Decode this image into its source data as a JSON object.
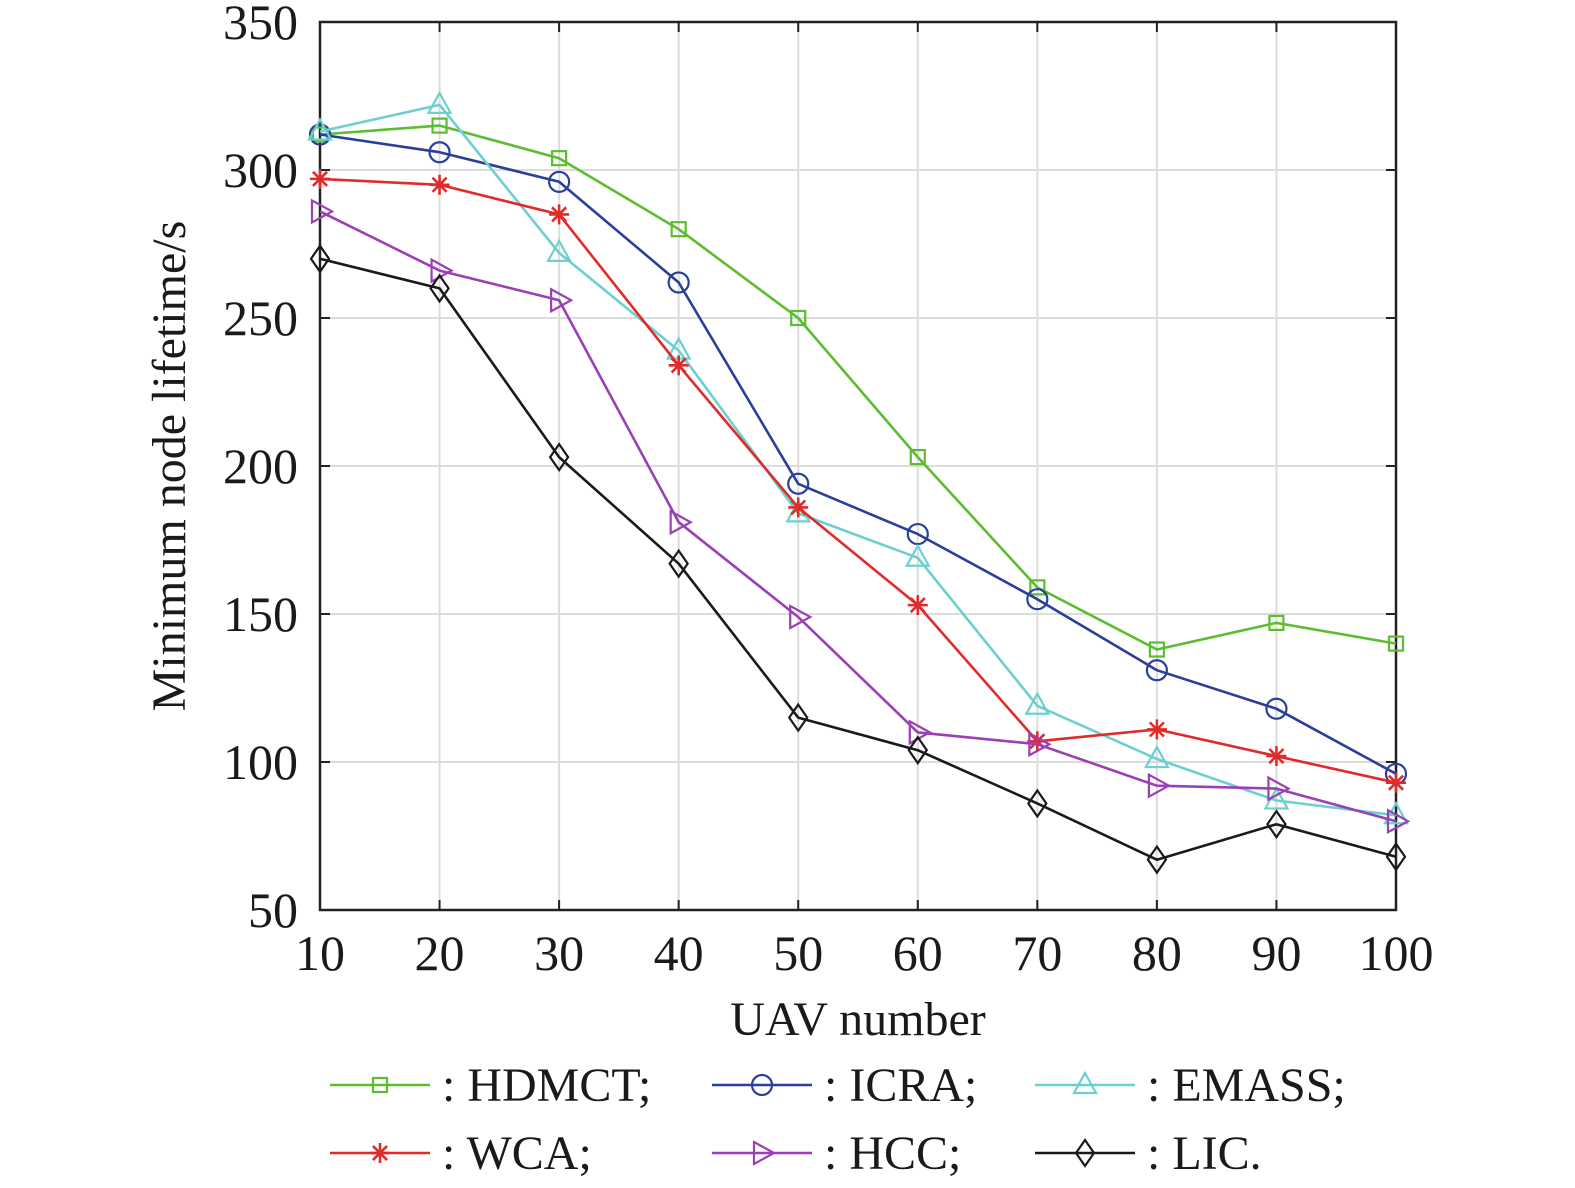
{
  "chart_data": {
    "type": "line",
    "title": "",
    "xlabel": "UAV number",
    "ylabel": "Minimum node lifetime/s",
    "xlim": [
      10,
      100
    ],
    "ylim": [
      50,
      350
    ],
    "grid": true,
    "legend_position": "bottom",
    "x": [
      10,
      20,
      30,
      40,
      50,
      60,
      70,
      80,
      90,
      100
    ],
    "x_ticks": [
      "10",
      "20",
      "30",
      "40",
      "50",
      "60",
      "70",
      "80",
      "90",
      "100"
    ],
    "y_ticks": [
      "50",
      "100",
      "150",
      "200",
      "250",
      "300",
      "350"
    ],
    "series": [
      {
        "name": "HDMCT",
        "legend_label": ": HDMCT;",
        "color": "#5bbd2f",
        "marker": "square",
        "values": [
          312,
          315,
          304,
          280,
          250,
          203,
          159,
          138,
          147,
          140
        ]
      },
      {
        "name": "ICRA",
        "legend_label": ": ICRA;",
        "color": "#2b3f9a",
        "marker": "circle",
        "values": [
          312,
          306,
          296,
          262,
          194,
          177,
          155,
          131,
          118,
          96
        ]
      },
      {
        "name": "EMASS",
        "legend_label": ": EMASS;",
        "color": "#6ccfd0",
        "marker": "triangle-up",
        "values": [
          313,
          322,
          272,
          239,
          184,
          169,
          119,
          101,
          87,
          82
        ]
      },
      {
        "name": "WCA",
        "legend_label": ": WCA;",
        "color": "#e02b2b",
        "marker": "asterisk",
        "values": [
          297,
          295,
          285,
          234,
          186,
          153,
          107,
          111,
          102,
          93
        ]
      },
      {
        "name": "HCC",
        "legend_label": ": HCC;",
        "color": "#9b3fb5",
        "marker": "triangle-right",
        "values": [
          286,
          266,
          256,
          181,
          149,
          110,
          106,
          92,
          91,
          80
        ]
      },
      {
        "name": "LIC",
        "legend_label": ": LIC.",
        "color": "#1a1a1a",
        "marker": "diamond",
        "values": [
          270,
          260,
          203,
          167,
          115,
          104,
          86,
          67,
          79,
          68
        ]
      }
    ]
  }
}
